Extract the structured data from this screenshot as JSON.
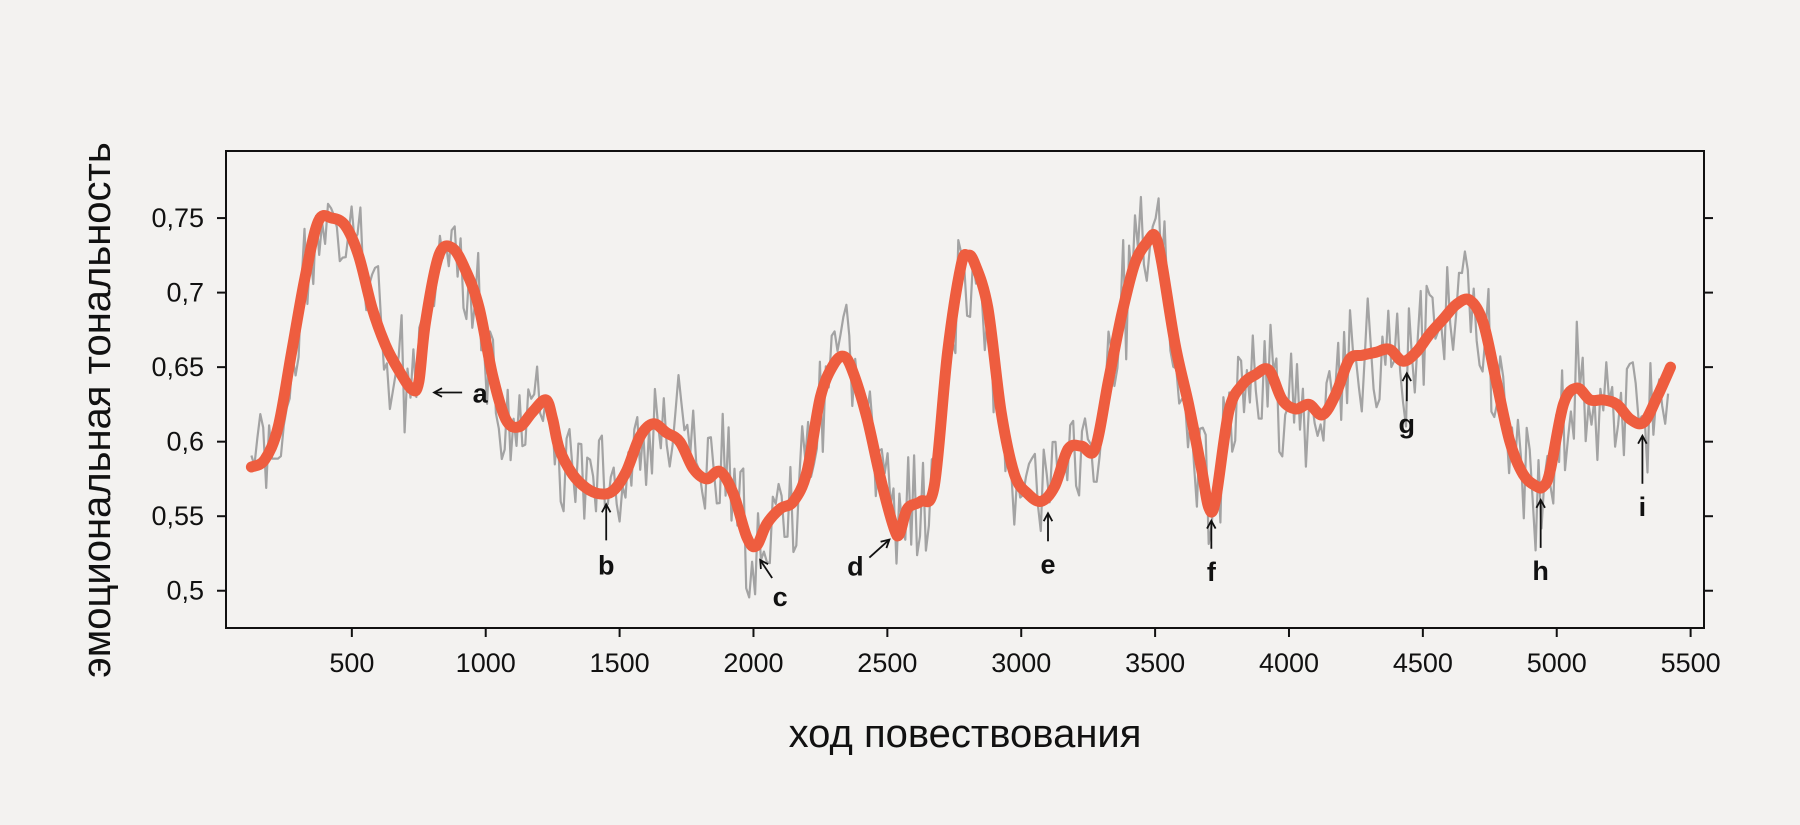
{
  "chart_data": {
    "type": "line",
    "title": "",
    "xlabel": "ход повествования",
    "ylabel": "эмоциональная тональность",
    "xlim": [
      30,
      5550
    ],
    "ylim": [
      0.475,
      0.795
    ],
    "x_ticks": [
      500,
      1000,
      1500,
      2000,
      2500,
      3000,
      3500,
      4000,
      4500,
      5000,
      5500
    ],
    "x_tick_labels": [
      "500",
      "1000",
      "1500",
      "2000",
      "2500",
      "3000",
      "3500",
      "4000",
      "4500",
      "5000",
      "5500"
    ],
    "y_ticks": [
      0.5,
      0.55,
      0.6,
      0.65,
      0.7,
      0.75
    ],
    "y_tick_labels": [
      "0,5",
      "0,55",
      "0,6",
      "0,65",
      "0,7",
      "0,75"
    ],
    "grid": false,
    "legend": "none",
    "colors": {
      "raw": "#a3a3a3",
      "smoothed": "#ee5d3f",
      "background": "#f3f2f0",
      "axis": "#111111"
    },
    "series": [
      {
        "role": "smoothed",
        "x": [
          125,
          175,
          225,
          275,
          325,
          375,
          425,
          475,
          525,
          575,
          625,
          675,
          725,
          750,
          775,
          825,
          875,
          925,
          975,
          1025,
          1075,
          1125,
          1175,
          1225,
          1250,
          1275,
          1325,
          1375,
          1425,
          1475,
          1525,
          1575,
          1625,
          1675,
          1725,
          1775,
          1825,
          1875,
          1925,
          1975,
          2010,
          2050,
          2100,
          2150,
          2200,
          2250,
          2300,
          2340,
          2375,
          2425,
          2475,
          2525,
          2545,
          2575,
          2625,
          2675,
          2725,
          2775,
          2800,
          2825,
          2875,
          2925,
          2975,
          3025,
          3075,
          3125,
          3175,
          3225,
          3275,
          3325,
          3375,
          3425,
          3475,
          3500,
          3525,
          3575,
          3625,
          3675,
          3700,
          3725,
          3775,
          3825,
          3875,
          3925,
          3975,
          4025,
          4075,
          4125,
          4175,
          4225,
          4275,
          4325,
          4375,
          4425,
          4475,
          4525,
          4575,
          4625,
          4675,
          4725,
          4775,
          4825,
          4875,
          4925,
          4950,
          4975,
          5025,
          5075,
          5125,
          5175,
          5225,
          5275,
          5325,
          5375,
          5425
        ],
        "y": [
          0.583,
          0.588,
          0.61,
          0.66,
          0.71,
          0.748,
          0.75,
          0.745,
          0.725,
          0.69,
          0.665,
          0.648,
          0.635,
          0.64,
          0.68,
          0.725,
          0.73,
          0.715,
          0.69,
          0.645,
          0.615,
          0.61,
          0.62,
          0.628,
          0.615,
          0.595,
          0.578,
          0.569,
          0.565,
          0.567,
          0.58,
          0.603,
          0.612,
          0.606,
          0.6,
          0.582,
          0.575,
          0.58,
          0.565,
          0.536,
          0.53,
          0.545,
          0.555,
          0.56,
          0.58,
          0.63,
          0.652,
          0.657,
          0.645,
          0.615,
          0.575,
          0.542,
          0.538,
          0.555,
          0.56,
          0.57,
          0.66,
          0.718,
          0.725,
          0.72,
          0.69,
          0.62,
          0.578,
          0.565,
          0.56,
          0.57,
          0.595,
          0.597,
          0.595,
          0.64,
          0.685,
          0.72,
          0.735,
          0.738,
          0.72,
          0.665,
          0.625,
          0.58,
          0.556,
          0.56,
          0.62,
          0.638,
          0.645,
          0.648,
          0.628,
          0.622,
          0.625,
          0.618,
          0.632,
          0.655,
          0.658,
          0.66,
          0.662,
          0.654,
          0.66,
          0.672,
          0.682,
          0.692,
          0.695,
          0.68,
          0.64,
          0.6,
          0.578,
          0.57,
          0.57,
          0.58,
          0.625,
          0.636,
          0.628,
          0.628,
          0.625,
          0.615,
          0.613,
          0.63,
          0.65
        ]
      }
    ],
    "annotations": [
      {
        "label": "a",
        "x": 755,
        "y": 0.633,
        "arrow": "left"
      },
      {
        "label": "b",
        "x": 1450,
        "y": 0.566,
        "arrow": "up"
      },
      {
        "label": "c",
        "x": 2010,
        "y": 0.53,
        "arrow": "up-left"
      },
      {
        "label": "d",
        "x": 2530,
        "y": 0.537,
        "arrow": "down-left"
      },
      {
        "label": "e",
        "x": 3100,
        "y": 0.56,
        "arrow": "up"
      },
      {
        "label": "f",
        "x": 3710,
        "y": 0.555,
        "arrow": "up"
      },
      {
        "label": "g",
        "x": 4440,
        "y": 0.654,
        "arrow": "up"
      },
      {
        "label": "h",
        "x": 4940,
        "y": 0.569,
        "arrow": "up"
      },
      {
        "label": "i",
        "x": 5320,
        "y": 0.612,
        "arrow": "up"
      }
    ]
  }
}
